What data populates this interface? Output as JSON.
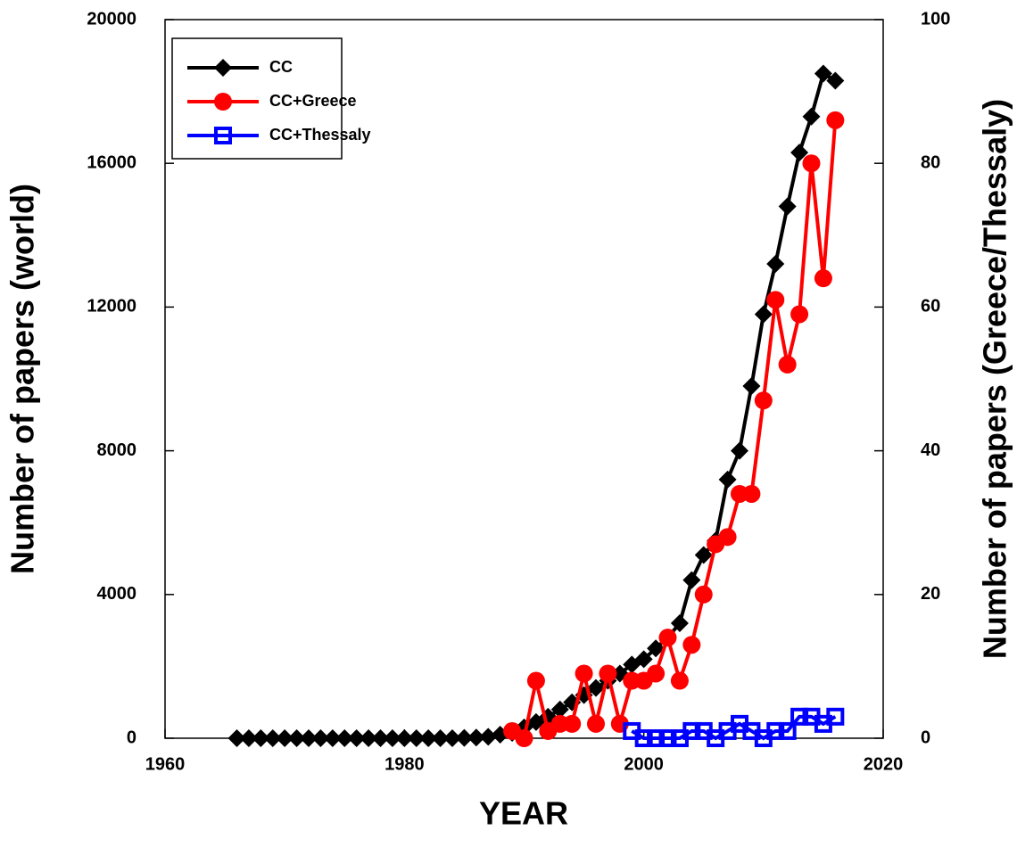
{
  "chart_data": {
    "type": "line",
    "xlabel": "YEAR",
    "ylabel": "Number of papers (world)",
    "y2label": "Number of papers  (Greece/Thessaly)",
    "xlim": [
      1960,
      2020
    ],
    "xticks": [
      1960,
      1980,
      2000,
      2020
    ],
    "ylim": [
      0,
      20000
    ],
    "yticks": [
      0,
      4000,
      8000,
      12000,
      16000,
      20000
    ],
    "y2lim": [
      0,
      100
    ],
    "y2ticks": [
      0,
      20,
      40,
      60,
      80,
      100
    ],
    "legend": "upper left",
    "series": [
      {
        "name": "CC",
        "color": "#000000",
        "marker": "diamond",
        "x": [
          1966,
          1967,
          1968,
          1969,
          1970,
          1971,
          1972,
          1973,
          1974,
          1975,
          1976,
          1977,
          1978,
          1979,
          1980,
          1981,
          1982,
          1983,
          1984,
          1985,
          1986,
          1987,
          1988,
          1989,
          1990,
          1991,
          1992,
          1993,
          1994,
          1995,
          1996,
          1997,
          1998,
          1999,
          2000,
          2001,
          2002,
          2003,
          2004,
          2005,
          2006,
          2007,
          2008,
          2009,
          2010,
          2011,
          2012,
          2013,
          2014,
          2015,
          2016
        ],
        "values": [
          0,
          0,
          0,
          0,
          0,
          0,
          0,
          0,
          0,
          0,
          0,
          0,
          0,
          0,
          0,
          0,
          0,
          0,
          0,
          10,
          20,
          40,
          100,
          150,
          300,
          450,
          600,
          800,
          1000,
          1200,
          1400,
          1600,
          1800,
          2050,
          2200,
          2500,
          2800,
          3200,
          4400,
          5100,
          5500,
          7200,
          8000,
          9800,
          11800,
          13200,
          14800,
          16300,
          17300,
          18500,
          18300
        ]
      },
      {
        "name": "CC+Greece",
        "color": "#ff0000",
        "marker": "circle",
        "axis": "y2",
        "x": [
          1989,
          1990,
          1991,
          1992,
          1993,
          1994,
          1995,
          1996,
          1997,
          1998,
          1999,
          2000,
          2001,
          2002,
          2003,
          2004,
          2005,
          2006,
          2007,
          2008,
          2009,
          2010,
          2011,
          2012,
          2013,
          2014,
          2015,
          2016
        ],
        "values": [
          1,
          0,
          8,
          1,
          2,
          2,
          9,
          2,
          9,
          2,
          8,
          8,
          9,
          14,
          8,
          13,
          20,
          27,
          28,
          34,
          34,
          47,
          61,
          52,
          59,
          80,
          64,
          86
        ]
      },
      {
        "name": "CC+Thessaly",
        "color": "#0000ff",
        "marker": "square",
        "axis": "y2",
        "x": [
          1999,
          2000,
          2001,
          2002,
          2003,
          2004,
          2005,
          2006,
          2007,
          2008,
          2009,
          2010,
          2011,
          2012,
          2013,
          2014,
          2015,
          2016
        ],
        "values": [
          1,
          0,
          0,
          0,
          0,
          1,
          1,
          0,
          1,
          2,
          1,
          0,
          1,
          1,
          3,
          3,
          2,
          3
        ]
      }
    ]
  }
}
